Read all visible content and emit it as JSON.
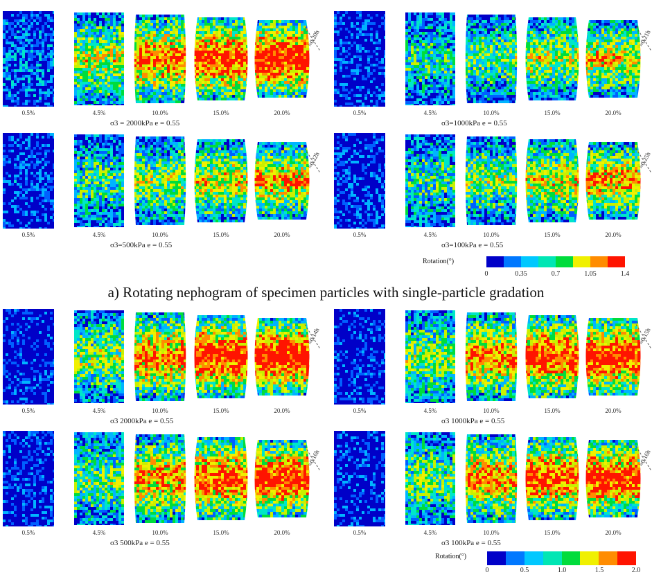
{
  "subtitle_a": "a) Rotating nephogram of specimen particles with single-particle gradation",
  "strain_labels": [
    "0.5%",
    "4.5%",
    "10.0%",
    "15.0%",
    "20.0%"
  ],
  "panels": [
    {
      "caption": "σ3 = 2000kPa  e = 0.55",
      "shear_label": "≈0.20h",
      "intensity": [
        0.15,
        0.55,
        0.75,
        0.85,
        0.92
      ]
    },
    {
      "caption": "σ3=1000kPa  e = 0.55",
      "shear_label": "≈0.21h",
      "intensity": [
        0.05,
        0.35,
        0.45,
        0.55,
        0.62
      ]
    },
    {
      "caption": "σ3=500kPa  e = 0.55",
      "shear_label": "≈0.22h",
      "intensity": [
        0.06,
        0.38,
        0.5,
        0.6,
        0.68
      ]
    },
    {
      "caption": "σ3=100kPa  e = 0.55",
      "shear_label": "≈0.25h",
      "intensity": [
        0.05,
        0.36,
        0.48,
        0.6,
        0.7
      ]
    },
    {
      "caption": "σ3  2000kPa  e = 0.55",
      "shear_label": "≈0.14h",
      "intensity": [
        0.0,
        0.5,
        0.75,
        0.88,
        0.93
      ]
    },
    {
      "caption": "σ3  1000kPa  e = 0.55",
      "shear_label": "≈0.15h",
      "intensity": [
        0.0,
        0.48,
        0.72,
        0.85,
        0.9
      ]
    },
    {
      "caption": "σ3  500kPa  e = 0.55",
      "shear_label": "≈0.16h",
      "intensity": [
        0.02,
        0.45,
        0.7,
        0.82,
        0.88
      ]
    },
    {
      "caption": "σ3  100kPa  e = 0.55",
      "shear_label": "≈0.16h",
      "intensity": [
        0.02,
        0.45,
        0.7,
        0.82,
        0.88
      ]
    }
  ],
  "legend_a": {
    "title": "Rotation(°)",
    "ticks": [
      "0",
      "0.35",
      "0.7",
      "1.05",
      "1.4"
    ]
  },
  "legend_b": {
    "title": "Rotation(°)",
    "ticks": [
      "0",
      "0.5",
      "1.0",
      "1.5",
      "2.0"
    ]
  },
  "colors": [
    "#0000c8",
    "#0060ff",
    "#00b4ff",
    "#00e6c8",
    "#00dc3c",
    "#c8f000",
    "#f0f000",
    "#ff8c00",
    "#ff1400"
  ]
}
